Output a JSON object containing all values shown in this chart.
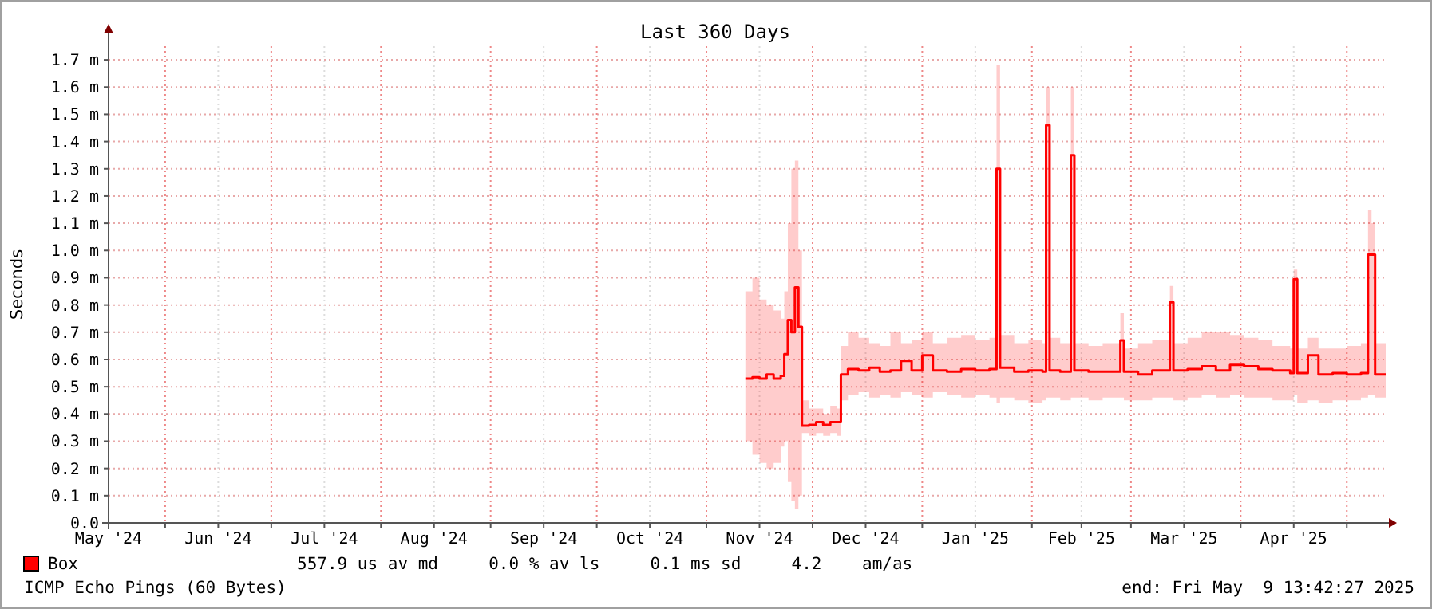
{
  "chart_data": {
    "type": "step",
    "title": "Last 360 Days",
    "ylabel": "Seconds",
    "xlim": [
      "2024-05-16",
      "2025-05-12"
    ],
    "xticks": [
      {
        "value": "2024-05-16",
        "label": "May '24"
      },
      {
        "value": "2024-06-01",
        "label": null
      },
      {
        "value": "2024-06-16",
        "label": "Jun '24"
      },
      {
        "value": "2024-07-01",
        "label": null
      },
      {
        "value": "2024-07-16",
        "label": "Jul '24"
      },
      {
        "value": "2024-08-01",
        "label": null
      },
      {
        "value": "2024-08-16",
        "label": "Aug '24"
      },
      {
        "value": "2024-09-01",
        "label": null
      },
      {
        "value": "2024-09-16",
        "label": "Sep '24"
      },
      {
        "value": "2024-10-01",
        "label": null
      },
      {
        "value": "2024-10-16",
        "label": "Oct '24"
      },
      {
        "value": "2024-11-01",
        "label": null
      },
      {
        "value": "2024-11-16",
        "label": "Nov '24"
      },
      {
        "value": "2024-12-01",
        "label": null
      },
      {
        "value": "2024-12-16",
        "label": "Dec '24"
      },
      {
        "value": "2025-01-01",
        "label": null
      },
      {
        "value": "2025-01-16",
        "label": "Jan '25"
      },
      {
        "value": "2025-02-01",
        "label": null
      },
      {
        "value": "2025-02-15",
        "label": "Feb '25"
      },
      {
        "value": "2025-03-01",
        "label": null
      },
      {
        "value": "2025-03-16",
        "label": "Mar '25"
      },
      {
        "value": "2025-04-01",
        "label": null
      },
      {
        "value": "2025-04-16",
        "label": "Apr '25"
      },
      {
        "value": "2025-05-01",
        "label": null
      }
    ],
    "ylim": [
      0,
      1.75
    ],
    "yticks": [
      {
        "value": 0,
        "label": "0.0"
      },
      {
        "value": 0.1,
        "label": "0.1 m"
      },
      {
        "value": 0.2,
        "label": "0.2 m"
      },
      {
        "value": 0.3,
        "label": "0.3 m"
      },
      {
        "value": 0.4,
        "label": "0.4 m"
      },
      {
        "value": 0.5,
        "label": "0.5 m"
      },
      {
        "value": 0.6,
        "label": "0.6 m"
      },
      {
        "value": 0.7,
        "label": "0.7 m"
      },
      {
        "value": 0.8,
        "label": "0.8 m"
      },
      {
        "value": 0.9,
        "label": "0.9 m"
      },
      {
        "value": 1.0,
        "label": "1.0 m"
      },
      {
        "value": 1.1,
        "label": "1.1 m"
      },
      {
        "value": 1.2,
        "label": "1.2 m"
      },
      {
        "value": 1.3,
        "label": "1.3 m"
      },
      {
        "value": 1.4,
        "label": "1.4 m"
      },
      {
        "value": 1.5,
        "label": "1.5 m"
      },
      {
        "value": 1.6,
        "label": "1.6 m"
      },
      {
        "value": 1.7,
        "label": "1.7 m"
      }
    ],
    "grid": true,
    "legend": "bottom left",
    "line_style": "solid",
    "x": [
      "2024-11-12",
      "2024-11-14",
      "2024-11-16",
      "2024-11-18",
      "2024-11-20",
      "2024-11-22",
      "2024-11-23",
      "2024-11-24",
      "2024-11-25",
      "2024-11-26",
      "2024-11-27",
      "2024-11-28",
      "2024-11-30",
      "2024-12-02",
      "2024-12-04",
      "2024-12-06",
      "2024-12-08",
      "2024-12-09",
      "2024-12-11",
      "2024-12-14",
      "2024-12-17",
      "2024-12-20",
      "2024-12-23",
      "2024-12-26",
      "2024-12-29",
      "2025-01-01",
      "2025-01-04",
      "2025-01-08",
      "2025-01-12",
      "2025-01-16",
      "2025-01-20",
      "2025-01-22",
      "2025-01-23",
      "2025-01-27",
      "2025-01-31",
      "2025-02-04",
      "2025-02-05",
      "2025-02-06",
      "2025-02-09",
      "2025-02-12",
      "2025-02-13",
      "2025-02-17",
      "2025-02-21",
      "2025-02-26",
      "2025-02-27",
      "2025-03-03",
      "2025-03-07",
      "2025-03-12",
      "2025-03-13",
      "2025-03-17",
      "2025-03-21",
      "2025-03-25",
      "2025-03-29",
      "2025-04-02",
      "2025-04-06",
      "2025-04-10",
      "2025-04-15",
      "2025-04-16",
      "2025-04-17",
      "2025-04-20",
      "2025-04-23",
      "2025-04-27",
      "2025-05-01",
      "2025-05-05",
      "2025-05-07",
      "2025-05-08",
      "2025-05-09",
      "2025-05-12"
    ],
    "series": [
      {
        "name": "Box",
        "color": "#ff0000",
        "values": [
          0.53,
          0.535,
          0.53,
          0.545,
          0.53,
          0.54,
          0.62,
          0.745,
          0.7,
          0.865,
          0.72,
          0.357,
          0.36,
          0.37,
          0.36,
          0.37,
          0.37,
          0.545,
          0.565,
          0.56,
          0.57,
          0.555,
          0.56,
          0.595,
          0.56,
          0.615,
          0.56,
          0.555,
          0.565,
          0.56,
          0.565,
          1.3,
          0.57,
          0.555,
          0.56,
          0.555,
          1.46,
          0.56,
          0.555,
          1.35,
          0.56,
          0.555,
          0.555,
          0.67,
          0.555,
          0.545,
          0.56,
          0.81,
          0.56,
          0.565,
          0.575,
          0.56,
          0.58,
          0.575,
          0.565,
          0.56,
          0.55,
          0.895,
          0.55,
          0.615,
          0.545,
          0.55,
          0.545,
          0.55,
          0.985,
          0.985,
          0.545,
          0.545
        ],
        "lower": [
          0.3,
          0.25,
          0.22,
          0.2,
          0.22,
          0.28,
          0.3,
          0.15,
          0.08,
          0.05,
          0.1,
          0.33,
          0.32,
          0.33,
          0.32,
          0.33,
          0.32,
          0.45,
          0.47,
          0.48,
          0.46,
          0.47,
          0.46,
          0.48,
          0.47,
          0.46,
          0.48,
          0.47,
          0.46,
          0.47,
          0.46,
          0.44,
          0.46,
          0.45,
          0.44,
          0.45,
          0.46,
          0.46,
          0.45,
          0.46,
          0.46,
          0.45,
          0.46,
          0.46,
          0.45,
          0.45,
          0.46,
          0.46,
          0.45,
          0.46,
          0.47,
          0.46,
          0.47,
          0.46,
          0.46,
          0.45,
          0.45,
          0.47,
          0.44,
          0.45,
          0.44,
          0.45,
          0.45,
          0.46,
          0.47,
          0.47,
          0.46,
          0.47
        ],
        "upper": [
          0.85,
          0.9,
          0.82,
          0.8,
          0.78,
          0.75,
          0.85,
          1.1,
          1.3,
          1.33,
          1.0,
          0.45,
          0.42,
          0.42,
          0.4,
          0.43,
          0.42,
          0.65,
          0.7,
          0.68,
          0.66,
          0.65,
          0.7,
          0.66,
          0.67,
          0.7,
          0.66,
          0.68,
          0.69,
          0.67,
          0.68,
          1.68,
          0.69,
          0.66,
          0.67,
          0.66,
          1.6,
          0.68,
          0.66,
          1.6,
          0.66,
          0.65,
          0.66,
          0.77,
          0.64,
          0.66,
          0.67,
          0.87,
          0.66,
          0.68,
          0.7,
          0.7,
          0.69,
          0.68,
          0.67,
          0.65,
          0.64,
          0.93,
          0.64,
          0.68,
          0.64,
          0.64,
          0.65,
          0.66,
          1.15,
          1.1,
          0.66,
          0.67
        ]
      }
    ],
    "annotations": [
      "557.9 us av md     0.0 % av ls     0.1 ms sd     4.2    am/as",
      "ICMP Echo Pings (60 Bytes)",
      "end: Fri May  9 13:42:27 2025"
    ]
  }
}
